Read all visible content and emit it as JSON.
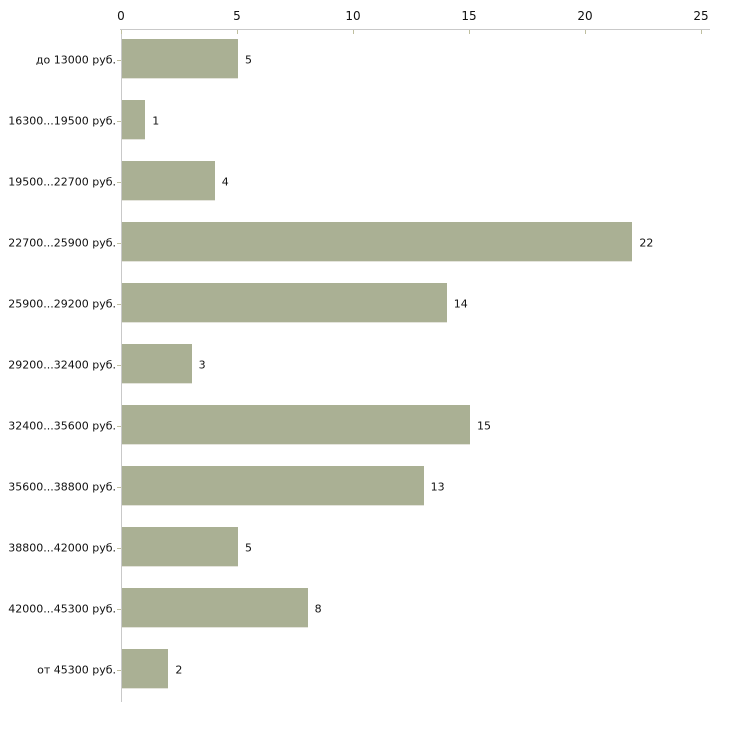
{
  "chart_data": {
    "type": "bar",
    "orientation": "horizontal",
    "title": "",
    "xlabel": "",
    "ylabel": "",
    "categories": [
      "до 13000 руб.",
      "16300...19500 руб.",
      "19500...22700 руб.",
      "22700...25900 руб.",
      "25900...29200 руб.",
      "29200...32400 руб.",
      "32400...35600 руб.",
      "35600...38800 руб.",
      "38800...42000 руб.",
      "42000...45300 руб.",
      "от 45300 руб."
    ],
    "values": [
      5,
      1,
      4,
      22,
      14,
      3,
      15,
      13,
      5,
      8,
      2
    ],
    "value_labels_shown": true,
    "xlim": [
      0,
      25
    ],
    "x_ticks": [
      0,
      5,
      10,
      15,
      20,
      25
    ],
    "x_axis_position": "top",
    "grid": false,
    "legend": false,
    "colors": {
      "bar_fill": "#aab094",
      "bar_edge": "#e4e4dc",
      "axis_line": "#c9c9c9",
      "tick_mark": "#bfbf9f",
      "text": "#111111",
      "background": "#ffffff"
    }
  }
}
